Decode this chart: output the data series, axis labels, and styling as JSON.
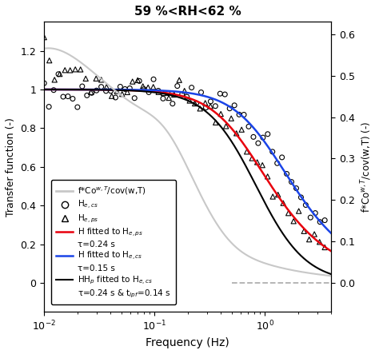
{
  "title": "59 %<RH<62 %",
  "xlabel": "Frequency (Hz)",
  "ylabel_left": "Transfer function (-)",
  "ylabel_right": "f*Co$^{w,T}$/cov(w,T) (-)",
  "xlim": [
    0.01,
    4.0
  ],
  "ylim_left": [
    -0.15,
    1.35
  ],
  "ylim_right": [
    -0.07,
    0.63
  ],
  "tau_red": 0.24,
  "tau_blue": 0.15,
  "tau_black": 0.24,
  "tlpf_black": 0.14,
  "gray_line_color": "#c8c8c8",
  "dashed_gray_color": "#b0b0b0",
  "red_color": "#e8000d",
  "blue_color": "#1a44e8",
  "black_color": "black"
}
